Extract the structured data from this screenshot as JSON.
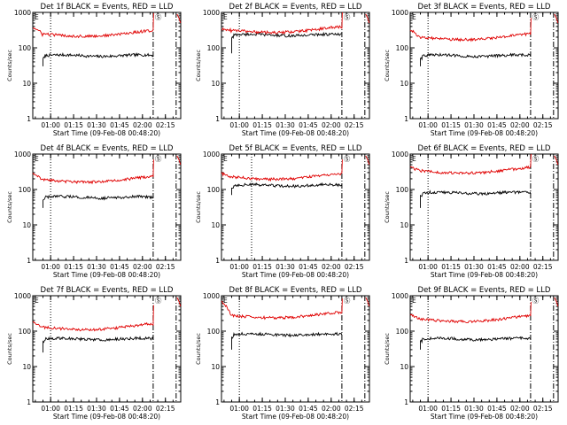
{
  "colors": {
    "events": "#000000",
    "lld": "#e00000",
    "axes": "#000000"
  },
  "chart_data": [
    {
      "type": "line",
      "title": "Det 1f BLACK = Events, RED = LLD",
      "xlabel": "Start Time (09-Feb-08 00:48:20)",
      "ylabel": "Counts/sec",
      "yscale": "log",
      "ylim": [
        1,
        1000
      ],
      "xlim": [
        "00:48:20",
        "02:25:00"
      ],
      "x_ticks": [
        "01:00",
        "01:15",
        "01:30",
        "01:45",
        "02:00",
        "02:15"
      ],
      "y_ticks": [
        "1",
        "10",
        "100",
        "1000"
      ],
      "series": [
        {
          "name": "Events",
          "color": "#000000",
          "t_start": "00:55:00",
          "t_end": "02:07:00",
          "start": 30,
          "level": 60,
          "end": 62
        },
        {
          "name": "LLD",
          "color": "#e00000",
          "t_start": "00:48:20",
          "t_end": "02:07:00",
          "start": 380,
          "level": 250,
          "end": 300
        }
      ],
      "vlines": [
        {
          "time": "01:00",
          "style": "dotted"
        },
        {
          "time": "02:07",
          "style": "dashdot"
        },
        {
          "time": "02:22",
          "style": "dashdot"
        }
      ],
      "markers": [
        "E",
        "Ⓢ"
      ]
    },
    {
      "type": "line",
      "title": "Det 2f BLACK = Events, RED = LLD",
      "xlabel": "Start Time (09-Feb-08 00:48:20)",
      "ylabel": "Counts/sec",
      "yscale": "log",
      "ylim": [
        1,
        1000
      ],
      "xlim": [
        "00:48:20",
        "02:25:00"
      ],
      "x_ticks": [
        "01:00",
        "01:15",
        "01:30",
        "01:45",
        "02:00",
        "02:15"
      ],
      "y_ticks": [
        "1",
        "10",
        "100",
        "1000"
      ],
      "series": [
        {
          "name": "Events",
          "color": "#000000",
          "t_start": "00:55:00",
          "t_end": "02:07:00",
          "start": 70,
          "level": 230,
          "end": 210
        },
        {
          "name": "LLD",
          "color": "#e00000",
          "t_start": "00:48:20",
          "t_end": "02:07:00",
          "start": 330,
          "level": 320,
          "end": 330
        }
      ],
      "vlines": [
        {
          "time": "01:00",
          "style": "dotted"
        },
        {
          "time": "02:07",
          "style": "dashdot"
        },
        {
          "time": "02:22",
          "style": "dashdot"
        }
      ],
      "markers": [
        "E",
        "Ⓢ"
      ]
    },
    {
      "type": "line",
      "title": "Det 3f BLACK = Events, RED = LLD",
      "xlabel": "Start Time (09-Feb-08 00:48:20)",
      "ylabel": "Counts/sec",
      "yscale": "log",
      "ylim": [
        1,
        1000
      ],
      "xlim": [
        "00:48:20",
        "02:25:00"
      ],
      "x_ticks": [
        "01:00",
        "01:15",
        "01:30",
        "01:45",
        "02:00",
        "02:15"
      ],
      "y_ticks": [
        "1",
        "10",
        "100",
        "1000"
      ],
      "series": [
        {
          "name": "Events",
          "color": "#000000",
          "t_start": "00:55:00",
          "t_end": "02:07:00",
          "start": 30,
          "level": 60,
          "end": 62
        },
        {
          "name": "LLD",
          "color": "#e00000",
          "t_start": "00:48:20",
          "t_end": "02:07:00",
          "start": 320,
          "level": 200,
          "end": 220
        }
      ],
      "vlines": [
        {
          "time": "01:00",
          "style": "dotted"
        },
        {
          "time": "02:07",
          "style": "dashdot"
        },
        {
          "time": "02:22",
          "style": "dashdot"
        }
      ],
      "markers": [
        "E",
        "Ⓢ"
      ]
    },
    {
      "type": "line",
      "title": "Det 4f BLACK = Events, RED = LLD",
      "xlabel": "Start Time (09-Feb-08 00:48:20)",
      "ylabel": "Counts/sec",
      "yscale": "log",
      "ylim": [
        1,
        1000
      ],
      "xlim": [
        "00:48:20",
        "02:25:00"
      ],
      "x_ticks": [
        "01:00",
        "01:15",
        "01:30",
        "01:45",
        "02:00",
        "02:15"
      ],
      "y_ticks": [
        "1",
        "10",
        "100",
        "1000"
      ],
      "series": [
        {
          "name": "Events",
          "color": "#000000",
          "t_start": "00:55:00",
          "t_end": "02:07:00",
          "start": 30,
          "level": 60,
          "end": 65
        },
        {
          "name": "LLD",
          "color": "#e00000",
          "t_start": "00:48:20",
          "t_end": "02:07:00",
          "start": 300,
          "level": 190,
          "end": 220
        }
      ],
      "vlines": [
        {
          "time": "01:00",
          "style": "dotted"
        },
        {
          "time": "02:07",
          "style": "dashdot"
        },
        {
          "time": "02:22",
          "style": "dashdot"
        }
      ],
      "markers": [
        "E",
        "Ⓢ"
      ]
    },
    {
      "type": "line",
      "title": "Det 5f BLACK = Events, RED = LLD",
      "xlabel": "Start Time (09-Feb-08 00:48:20)",
      "ylabel": "Counts/sec",
      "yscale": "log",
      "ylim": [
        1,
        1000
      ],
      "xlim": [
        "00:48:20",
        "02:25:00"
      ],
      "x_ticks": [
        "01:00",
        "01:15",
        "01:30",
        "01:45",
        "02:00",
        "02:15"
      ],
      "y_ticks": [
        "1",
        "10",
        "100",
        "1000"
      ],
      "series": [
        {
          "name": "Events",
          "color": "#000000",
          "t_start": "00:55:00",
          "t_end": "02:07:00",
          "start": 70,
          "level": 130,
          "end": 130
        },
        {
          "name": "LLD",
          "color": "#e00000",
          "t_start": "00:48:20",
          "t_end": "02:07:00",
          "start": 280,
          "level": 230,
          "end": 220
        }
      ],
      "vlines": [
        {
          "time": "01:08",
          "style": "dotted"
        },
        {
          "time": "02:07",
          "style": "dashdot"
        },
        {
          "time": "02:22",
          "style": "dashdot"
        }
      ],
      "markers": [
        "E",
        "Ⓢ"
      ]
    },
    {
      "type": "line",
      "title": "Det 6f BLACK = Events, RED = LLD",
      "xlabel": "Start Time (09-Feb-08 00:48:20)",
      "ylabel": "Counts/sec",
      "yscale": "log",
      "ylim": [
        1,
        1000
      ],
      "xlim": [
        "00:48:20",
        "02:25:00"
      ],
      "x_ticks": [
        "01:00",
        "01:15",
        "01:30",
        "01:45",
        "02:00",
        "02:15"
      ],
      "y_ticks": [
        "1",
        "10",
        "100",
        "1000"
      ],
      "series": [
        {
          "name": "Events",
          "color": "#000000",
          "t_start": "00:55:00",
          "t_end": "02:07:00",
          "start": 30,
          "level": 80,
          "end": 80
        },
        {
          "name": "LLD",
          "color": "#e00000",
          "t_start": "00:48:20",
          "t_end": "02:07:00",
          "start": 420,
          "level": 340,
          "end": 320
        }
      ],
      "vlines": [
        {
          "time": "01:00",
          "style": "dotted"
        },
        {
          "time": "02:07",
          "style": "dashdot"
        },
        {
          "time": "02:22",
          "style": "dashdot"
        }
      ],
      "markers": [
        "E",
        "Ⓢ"
      ]
    },
    {
      "type": "line",
      "title": "Det 7f BLACK = Events, RED = LLD",
      "xlabel": "Start Time (09-Feb-08 00:48:20)",
      "ylabel": "Counts/sec",
      "yscale": "log",
      "ylim": [
        1,
        1000
      ],
      "xlim": [
        "00:48:20",
        "02:25:00"
      ],
      "x_ticks": [
        "01:00",
        "01:15",
        "01:30",
        "01:45",
        "02:00",
        "02:15"
      ],
      "y_ticks": [
        "1",
        "10",
        "100",
        "1000"
      ],
      "series": [
        {
          "name": "Events",
          "color": "#000000",
          "t_start": "00:55:00",
          "t_end": "02:07:00",
          "start": 25,
          "level": 60,
          "end": 60
        },
        {
          "name": "LLD",
          "color": "#e00000",
          "t_start": "00:48:20",
          "t_end": "02:07:00",
          "start": 180,
          "level": 130,
          "end": 170
        }
      ],
      "vlines": [
        {
          "time": "01:00",
          "style": "dotted"
        },
        {
          "time": "02:07",
          "style": "dashdot"
        },
        {
          "time": "02:22",
          "style": "dashdot"
        }
      ],
      "markers": [
        "E",
        "Ⓢ"
      ]
    },
    {
      "type": "line",
      "title": "Det 8f BLACK = Events, RED = LLD",
      "xlabel": "Start Time (09-Feb-08 00:48:20)",
      "ylabel": "Counts/sec",
      "yscale": "log",
      "ylim": [
        1,
        1000
      ],
      "xlim": [
        "00:48:20",
        "02:25:00"
      ],
      "x_ticks": [
        "01:00",
        "01:15",
        "01:30",
        "01:45",
        "02:00",
        "02:15"
      ],
      "y_ticks": [
        "1",
        "10",
        "100",
        "1000"
      ],
      "series": [
        {
          "name": "Events",
          "color": "#000000",
          "t_start": "00:55:00",
          "t_end": "02:07:00",
          "start": 30,
          "level": 80,
          "end": 70
        },
        {
          "name": "LLD",
          "color": "#e00000",
          "t_start": "00:48:20",
          "t_end": "02:07:00",
          "start": 700,
          "level": 280,
          "end": 260
        }
      ],
      "vlines": [
        {
          "time": "01:00",
          "style": "dotted"
        },
        {
          "time": "02:07",
          "style": "dashdot"
        },
        {
          "time": "02:22",
          "style": "dashdot"
        }
      ],
      "markers": [
        "E",
        "Ⓢ"
      ]
    },
    {
      "type": "line",
      "title": "Det 9f BLACK = Events, RED = LLD",
      "xlabel": "Start Time (09-Feb-08 00:48:20)",
      "ylabel": "Counts/sec",
      "yscale": "log",
      "ylim": [
        1,
        1000
      ],
      "xlim": [
        "00:48:20",
        "02:25:00"
      ],
      "x_ticks": [
        "01:00",
        "01:15",
        "01:30",
        "01:45",
        "02:00",
        "02:15"
      ],
      "y_ticks": [
        "1",
        "10",
        "100",
        "1000"
      ],
      "series": [
        {
          "name": "Events",
          "color": "#000000",
          "t_start": "00:55:00",
          "t_end": "02:07:00",
          "start": 30,
          "level": 60,
          "end": 55
        },
        {
          "name": "LLD",
          "color": "#e00000",
          "t_start": "00:48:20",
          "t_end": "02:07:00",
          "start": 290,
          "level": 220,
          "end": 210
        }
      ],
      "vlines": [
        {
          "time": "01:00",
          "style": "dotted"
        },
        {
          "time": "02:07",
          "style": "dashdot"
        },
        {
          "time": "02:22",
          "style": "dashdot"
        }
      ],
      "markers": [
        "E",
        "Ⓢ"
      ]
    }
  ]
}
